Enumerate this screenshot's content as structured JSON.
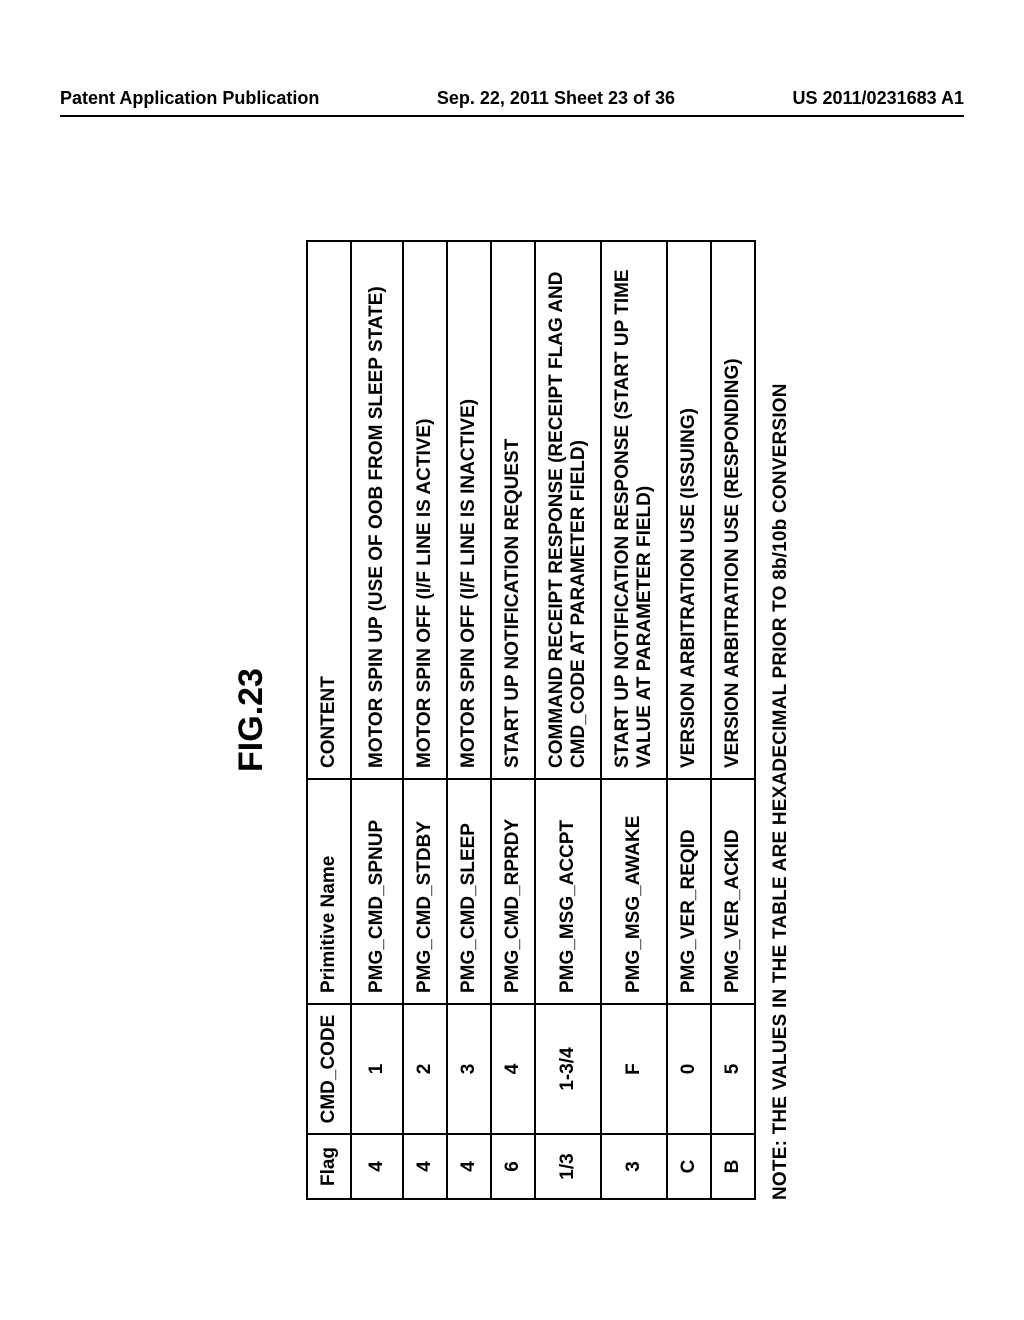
{
  "header": {
    "left": "Patent Application Publication",
    "center": "Sep. 22, 2011  Sheet 23 of 36",
    "right": "US 2011/0231683 A1"
  },
  "figure": {
    "title": "FIG.23",
    "note": "NOTE: THE VALUES IN THE TABLE ARE HEXADECIMAL PRIOR TO 8b/10b CONVERSION",
    "columns": [
      "Flag",
      "CMD_CODE",
      "Primitive Name",
      "CONTENT"
    ],
    "rows": [
      {
        "flag": "4",
        "code": "1",
        "prim": "PMG_CMD_SPNUP",
        "content": "MOTOR SPIN UP (USE OF OOB FROM SLEEP STATE)"
      },
      {
        "flag": "4",
        "code": "2",
        "prim": "PMG_CMD_STDBY",
        "content": "MOTOR SPIN OFF (I/F LINE IS ACTIVE)"
      },
      {
        "flag": "4",
        "code": "3",
        "prim": "PMG_CMD_SLEEP",
        "content": "MOTOR SPIN OFF (I/F LINE IS INACTIVE)"
      },
      {
        "flag": "6",
        "code": "4",
        "prim": "PMG_CMD_RPRDY",
        "content": "START UP NOTIFICATION REQUEST"
      },
      {
        "flag": "1/3",
        "code": "1-3/4",
        "prim": "PMG_MSG_ACCPT",
        "content": "COMMAND RECEIPT RESPONSE (RECEIPT FLAG AND CMD_CODE AT PARAMETER FIELD)"
      },
      {
        "flag": "3",
        "code": "F",
        "prim": "PMG_MSG_AWAKE",
        "content": "START UP NOTIFICATION RESPONSE (START UP TIME VALUE AT PARAMETER FIELD)"
      },
      {
        "flag": "C",
        "code": "0",
        "prim": "PMG_VER_REQID",
        "content": "VERSION ARBITRATION USE (ISSUING)"
      },
      {
        "flag": "B",
        "code": "5",
        "prim": "PMG_VER_ACKID",
        "content": "VERSION ARBITRATION USE (RESPONDING)"
      }
    ]
  }
}
